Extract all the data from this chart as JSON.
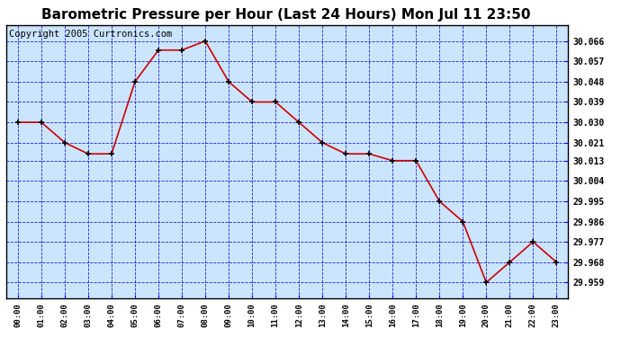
{
  "title": "Barometric Pressure per Hour (Last 24 Hours) Mon Jul 11 23:50",
  "copyright": "Copyright 2005 Curtronics.com",
  "hours": [
    "00:00",
    "01:00",
    "02:00",
    "03:00",
    "04:00",
    "05:00",
    "06:00",
    "07:00",
    "08:00",
    "09:00",
    "10:00",
    "11:00",
    "12:00",
    "13:00",
    "14:00",
    "15:00",
    "16:00",
    "17:00",
    "18:00",
    "19:00",
    "20:00",
    "21:00",
    "22:00",
    "23:00"
  ],
  "values": [
    30.03,
    30.03,
    30.021,
    30.016,
    30.016,
    30.048,
    30.062,
    30.062,
    30.066,
    30.048,
    30.039,
    30.039,
    30.03,
    30.021,
    30.016,
    30.016,
    30.013,
    30.013,
    29.995,
    29.986,
    29.959,
    29.968,
    29.977,
    29.968
  ],
  "yticks": [
    29.959,
    29.968,
    29.977,
    29.986,
    29.995,
    30.004,
    30.013,
    30.021,
    30.03,
    30.039,
    30.048,
    30.057,
    30.066
  ],
  "ylim": [
    29.952,
    30.073
  ],
  "line_color": "#cc0000",
  "marker_color": "#000000",
  "bg_color": "#cce5ff",
  "grid_color": "#0000cc",
  "title_fontsize": 11,
  "copyright_fontsize": 7.5
}
